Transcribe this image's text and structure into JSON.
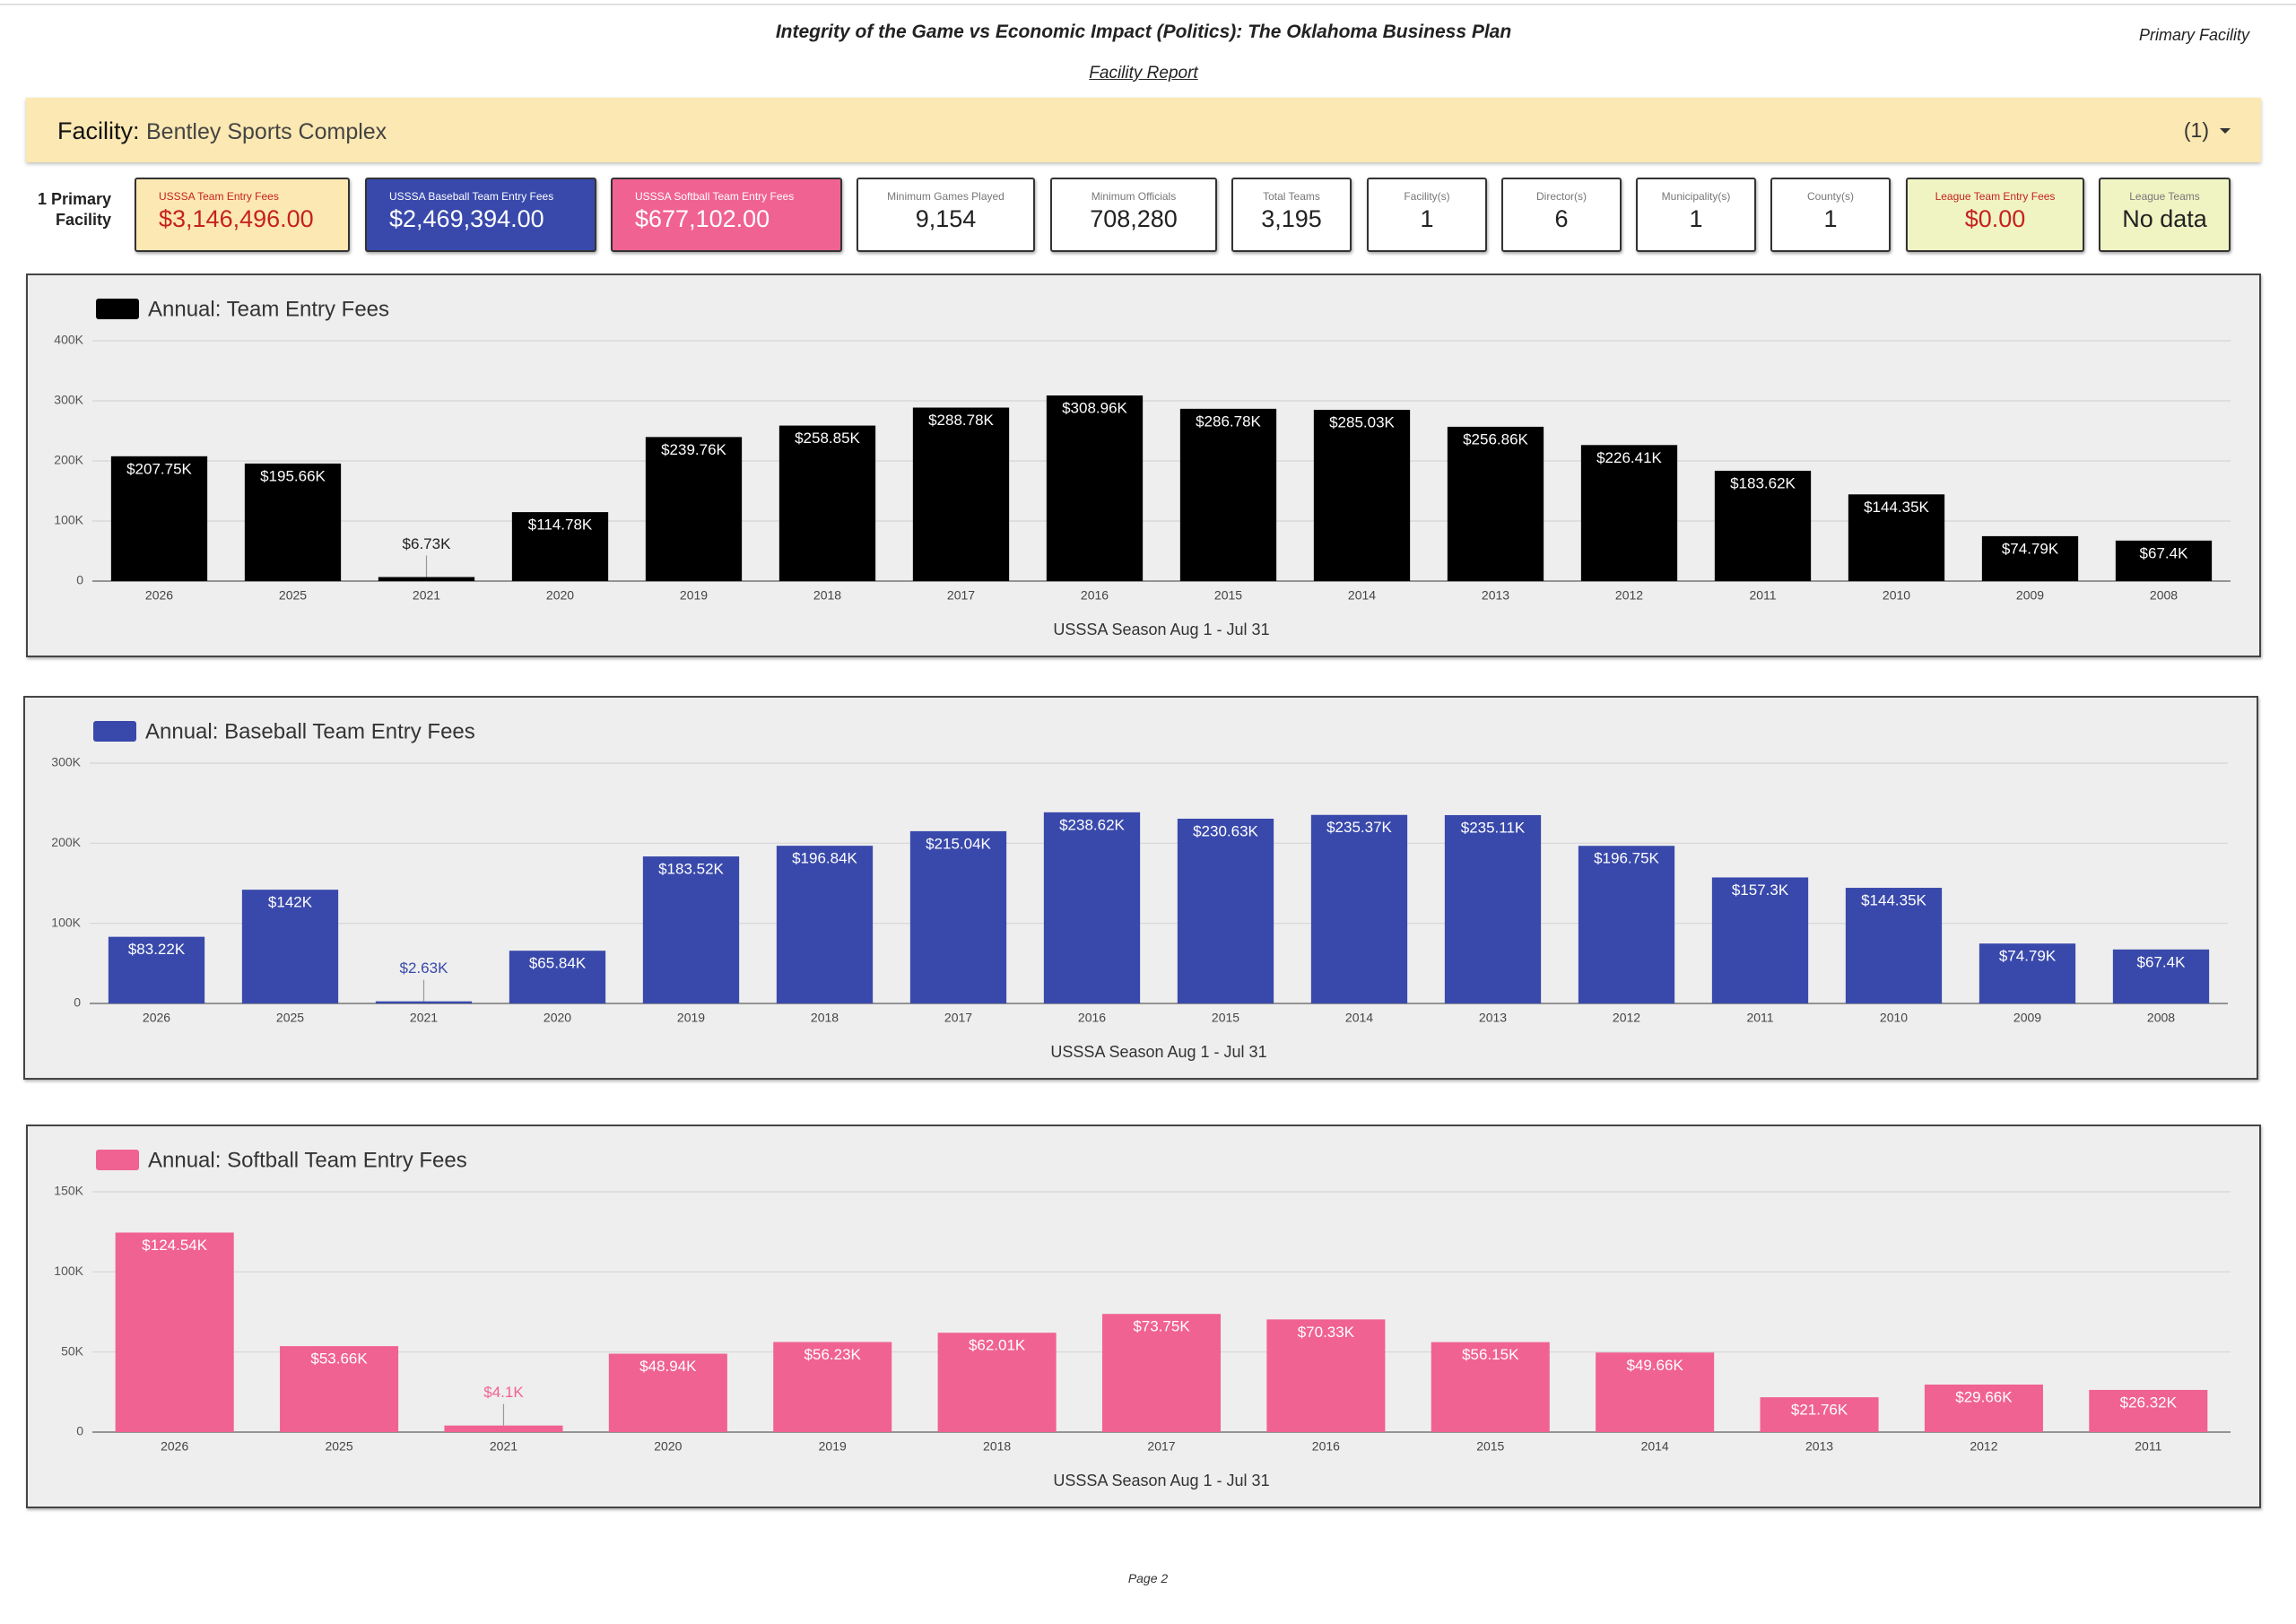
{
  "header": {
    "title": "Integrity of the Game vs Economic Impact (Politics): The Oklahoma Business Plan",
    "subtitle": "Facility Report",
    "corner": "Primary Facility"
  },
  "facility": {
    "label": "Facility:",
    "name": "Bentley Sports Complex",
    "count": "(1)"
  },
  "primary": "1 Primary Facility",
  "scorecards": [
    {
      "label": "USSSA Team Entry Fees",
      "value": "$3,146,496.00"
    },
    {
      "label": "USSSA Baseball Team Entry Fees",
      "value": "$2,469,394.00"
    },
    {
      "label": "USSSA Softball Team Entry Fees",
      "value": "$677,102.00"
    },
    {
      "label": "Minimum Games Played",
      "value": "9,154"
    },
    {
      "label": "Minimum Officials",
      "value": "708,280"
    },
    {
      "label": "Total Teams",
      "value": "3,195"
    },
    {
      "label": "Facility(s)",
      "value": "1"
    },
    {
      "label": "Director(s)",
      "value": "6"
    },
    {
      "label": "Municipality(s)",
      "value": "1"
    },
    {
      "label": "County(s)",
      "value": "1"
    },
    {
      "label": "League Team Entry Fees",
      "value": "$0.00"
    },
    {
      "label": "League Teams",
      "value": "No data"
    }
  ],
  "chart_data": [
    {
      "type": "bar",
      "x_label": "USSSA Season Aug 1 - Jul 31",
      "grid": true,
      "categories": [
        "2026",
        "2025",
        "2021",
        "2020",
        "2019",
        "2018",
        "2017",
        "2016",
        "2015",
        "2014",
        "2013",
        "2012",
        "2011",
        "2010",
        "2009",
        "2008"
      ],
      "series": [
        {
          "name": "Annual: Team Entry Fees",
          "color": "#000000",
          "values": [
            207750,
            195660,
            6730,
            114780,
            239760,
            258850,
            288780,
            308960,
            286780,
            285030,
            256860,
            226410,
            183620,
            144350,
            74790,
            67400
          ],
          "value_labels": [
            "$207.75K",
            "$195.66K",
            "$6.73K",
            "$114.78K",
            "$239.76K",
            "$258.85K",
            "$288.78K",
            "$308.96K",
            "$286.78K",
            "$285.03K",
            "$256.86K",
            "$226.41K",
            "$183.62K",
            "$144.35K",
            "$74.79K",
            "$67.4K"
          ]
        }
      ],
      "ylim": [
        0,
        400000
      ],
      "yticks": [
        0,
        {
          "value": 100000,
          "label": "100K"
        },
        {
          "value": 200000,
          "label": "200K"
        },
        {
          "value": 300000,
          "label": "300K"
        },
        {
          "value": 400000,
          "label": "400K"
        }
      ]
    },
    {
      "type": "bar",
      "x_label": "USSSA Season Aug 1 - Jul 31",
      "grid": true,
      "categories": [
        "2026",
        "2025",
        "2021",
        "2020",
        "2019",
        "2018",
        "2017",
        "2016",
        "2015",
        "2014",
        "2013",
        "2012",
        "2011",
        "2010",
        "2009",
        "2008"
      ],
      "series": [
        {
          "name": "Annual: Baseball Team Entry Fees",
          "color": "#3949ab",
          "values": [
            83220,
            142000,
            2630,
            65840,
            183520,
            196840,
            215040,
            238620,
            230630,
            235370,
            235110,
            196750,
            157300,
            144350,
            74790,
            67400
          ],
          "value_labels": [
            "$83.22K",
            "$142K",
            "$2.63K",
            "$65.84K",
            "$183.52K",
            "$196.84K",
            "$215.04K",
            "$238.62K",
            "$230.63K",
            "$235.37K",
            "$235.11K",
            "$196.75K",
            "$157.3K",
            "$144.35K",
            "$74.79K",
            "$67.4K"
          ]
        }
      ],
      "ylim": [
        0,
        300000
      ],
      "yticks": [
        0,
        {
          "value": 100000,
          "label": "100K"
        },
        {
          "value": 200000,
          "label": "200K"
        },
        {
          "value": 300000,
          "label": "300K"
        }
      ]
    },
    {
      "type": "bar",
      "x_label": "USSSA Season Aug 1 - Jul 31",
      "grid": true,
      "categories": [
        "2026",
        "2025",
        "2021",
        "2020",
        "2019",
        "2018",
        "2017",
        "2016",
        "2015",
        "2014",
        "2013",
        "2012",
        "2011"
      ],
      "series": [
        {
          "name": "Annual: Softball Team Entry Fees",
          "color": "#f06292",
          "values": [
            124540,
            53660,
            4100,
            48940,
            56230,
            62010,
            73750,
            70330,
            56150,
            49660,
            21760,
            29660,
            26320
          ],
          "value_labels": [
            "$124.54K",
            "$53.66K",
            "$4.1K",
            "$48.94K",
            "$56.23K",
            "$62.01K",
            "$73.75K",
            "$70.33K",
            "$56.15K",
            "$49.66K",
            "$21.76K",
            "$29.66K",
            "$26.32K"
          ]
        }
      ],
      "ylim": [
        0,
        150000
      ],
      "yticks": [
        0,
        {
          "value": 50000,
          "label": "50K"
        },
        {
          "value": 100000,
          "label": "100K"
        },
        {
          "value": 150000,
          "label": "150K"
        }
      ]
    }
  ],
  "footer": "Page 2"
}
